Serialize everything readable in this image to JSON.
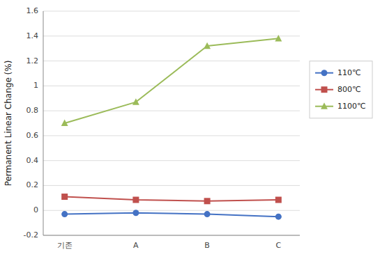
{
  "chart_data": {
    "type": "line",
    "categories": [
      "기존",
      "A",
      "B",
      "C"
    ],
    "series": [
      {
        "name": "110℃",
        "color": "#4472C4",
        "marker": "circle",
        "values": [
          -0.03,
          -0.02,
          -0.03,
          -0.05
        ]
      },
      {
        "name": "800℃",
        "color": "#C0504D",
        "marker": "square",
        "values": [
          0.11,
          0.085,
          0.075,
          0.085
        ]
      },
      {
        "name": "1100℃",
        "color": "#9BBB59",
        "marker": "triangle",
        "values": [
          0.7,
          0.87,
          1.32,
          1.38
        ]
      }
    ],
    "y_label": "Permanent Linear Change (%)",
    "ylim": [
      -0.2,
      1.6
    ],
    "yticks": [
      -0.2,
      0,
      0.2,
      0.4,
      0.6,
      0.8,
      1,
      1.2,
      1.4,
      1.6
    ],
    "grid": true,
    "legend": "right"
  }
}
